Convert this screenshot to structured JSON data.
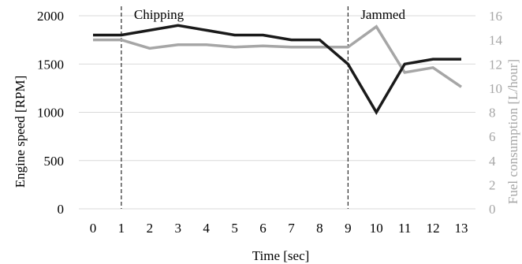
{
  "chart_data": {
    "type": "line",
    "xlabel": "Time [sec]",
    "ylabel_left": "Engine speed [RPM]",
    "ylabel_right": "Fuel consumption [L/hour]",
    "x": [
      0,
      1,
      2,
      3,
      4,
      5,
      6,
      7,
      8,
      9,
      10,
      11,
      12,
      13
    ],
    "ylim_left": [
      0,
      2000
    ],
    "yticks_left": [
      0,
      500,
      1000,
      1500,
      2000
    ],
    "ylim_right": [
      0,
      16
    ],
    "yticks_right": [
      0,
      2,
      4,
      6,
      8,
      10,
      12,
      14,
      16
    ],
    "grid": "horizontal",
    "series": [
      {
        "axis": "left",
        "color": "#1a1a1a",
        "values": [
          1800,
          1800,
          1850,
          1900,
          1850,
          1800,
          1800,
          1750,
          1750,
          1500,
          1000,
          1500,
          1550,
          1550
        ]
      },
      {
        "axis": "right",
        "color": "#a6a6a6",
        "values": [
          14,
          14,
          13.3,
          13.6,
          13.6,
          13.4,
          13.5,
          13.4,
          13.4,
          13.4,
          15.1,
          11.3,
          11.7,
          10.1
        ]
      }
    ],
    "annotations": [
      {
        "x": 1,
        "label": "Chipping"
      },
      {
        "x": 9,
        "label": "Jammed"
      }
    ],
    "colors": {
      "grid": "#d9d9d9",
      "left_axis_text": "#000000",
      "right_axis_text": "#a6a6a6",
      "marker_line": "#000000"
    }
  }
}
